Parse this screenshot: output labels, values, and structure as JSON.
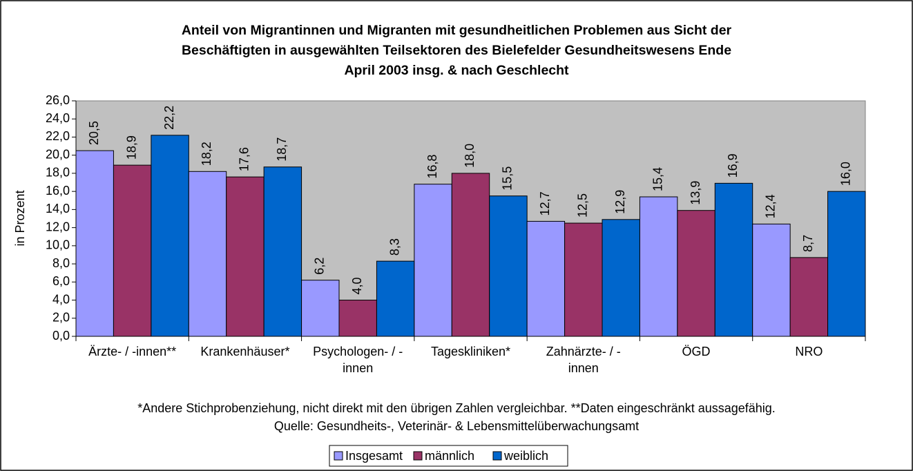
{
  "chart_data": {
    "type": "bar",
    "title": "Anteil von Migrantinnen und Migranten mit gesundheitlichen Problemen aus Sicht der\nBeschäftigten in ausgewählten Teilsektoren des Bielefelder Gesundheitswesens Ende\nApril 2003 insg. & nach Geschlecht",
    "y_label": "in Prozent",
    "categories": [
      "Ärzte- / -innen**",
      "Krankenhäuser*",
      "Psychologen- / -\ninnen",
      "Tageskliniken*",
      "Zahnärzte- / -\ninnen",
      "ÖGD",
      "NRO"
    ],
    "series": [
      {
        "name": "Insgesamt",
        "color": "#9999ff",
        "values": [
          20.5,
          18.2,
          6.2,
          16.8,
          12.7,
          15.4,
          12.4
        ],
        "value_labels": [
          "20,5",
          "18,2",
          "6,2",
          "16,8",
          "12,7",
          "15,4",
          "12,4"
        ]
      },
      {
        "name": "männlich",
        "color": "#993366",
        "values": [
          18.9,
          17.6,
          4.0,
          18.0,
          12.5,
          13.9,
          8.7
        ],
        "value_labels": [
          "18,9",
          "17,6",
          "4,0",
          "18,0",
          "12,5",
          "13,9",
          "8,7"
        ]
      },
      {
        "name": "weiblich",
        "color": "#0066cc",
        "values": [
          22.2,
          18.7,
          8.3,
          15.5,
          12.9,
          16.9,
          16.0
        ],
        "value_labels": [
          "22,2",
          "18,7",
          "8,3",
          "15,5",
          "12,9",
          "16,9",
          "16,0"
        ]
      }
    ],
    "ylim": [
      0,
      26
    ],
    "yticks": [
      {
        "value": 0,
        "label": "0,0"
      },
      {
        "value": 2,
        "label": "2,0"
      },
      {
        "value": 4,
        "label": "4,0"
      },
      {
        "value": 6,
        "label": "6,0"
      },
      {
        "value": 8,
        "label": "8,0"
      },
      {
        "value": 10,
        "label": "10,0"
      },
      {
        "value": 12,
        "label": "12,0"
      },
      {
        "value": 14,
        "label": "14,0"
      },
      {
        "value": 16,
        "label": "16,0"
      },
      {
        "value": 18,
        "label": "18,0"
      },
      {
        "value": 20,
        "label": "20,0"
      },
      {
        "value": 22,
        "label": "22,0"
      },
      {
        "value": 24,
        "label": "24,0"
      },
      {
        "value": 26,
        "label": "26,0"
      }
    ],
    "notes": [
      "*Andere Stichprobenziehung, nicht direkt mit den übrigen Zahlen vergleichbar. **Daten eingeschränkt aussagefähig.",
      "Quelle: Gesundheits-, Veterinär- & Lebensmittelüberwachungsamt"
    ],
    "plot_background": "#c0c0c0",
    "legend": "bottom"
  }
}
